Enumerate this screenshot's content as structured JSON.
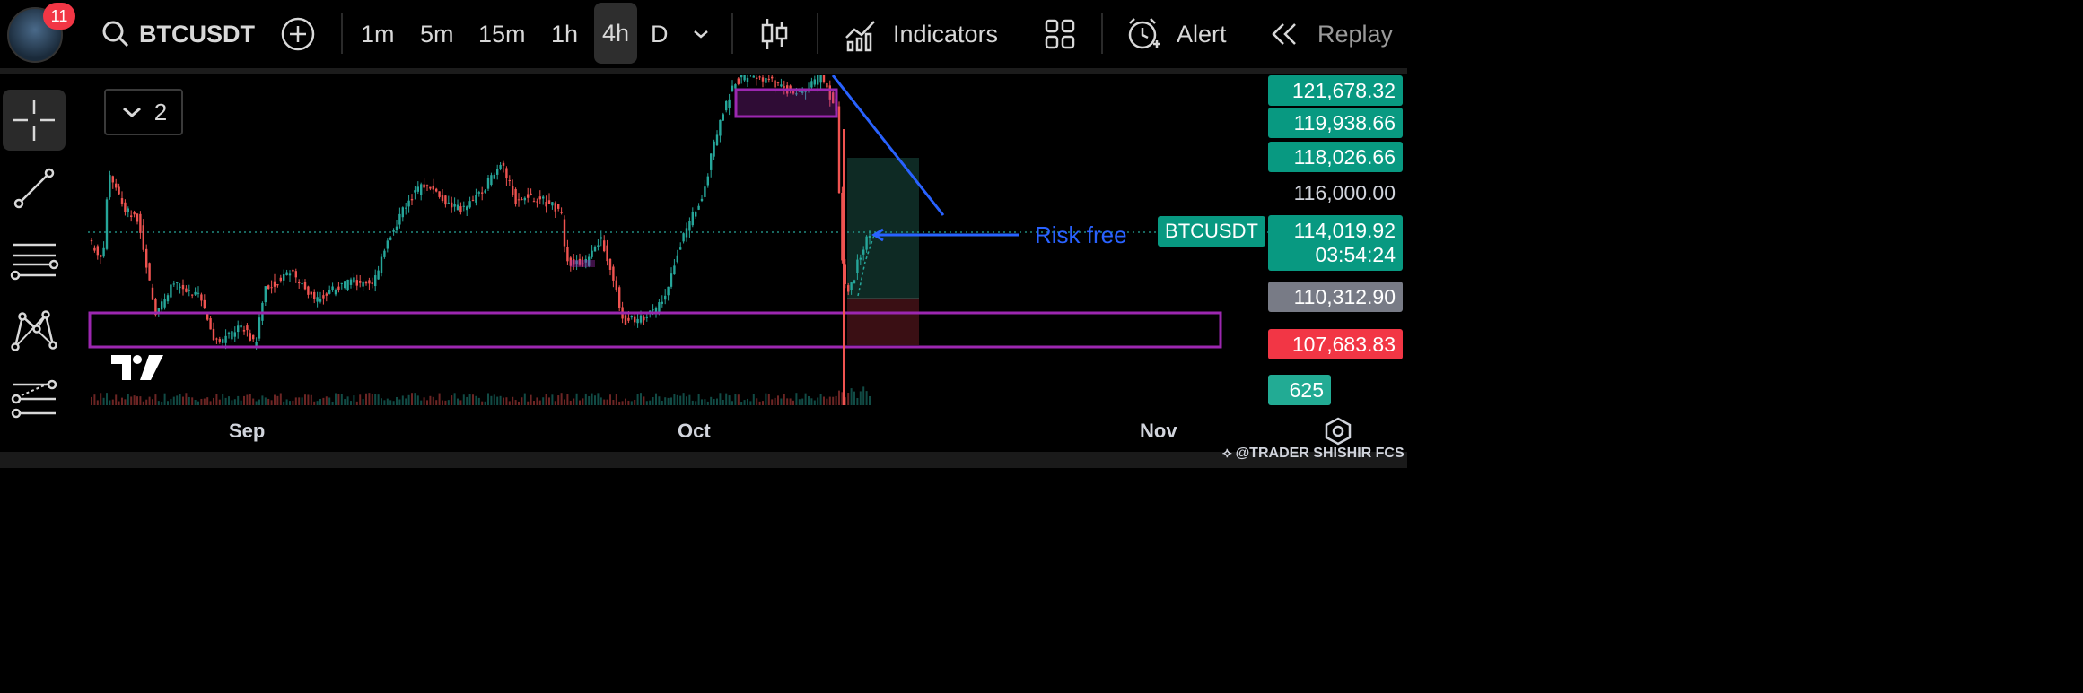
{
  "toolbar": {
    "notifications": "11",
    "symbol": "BTCUSDT",
    "timeframes": [
      "1m",
      "5m",
      "15m",
      "1h",
      "4h",
      "D"
    ],
    "active_timeframe": "4h",
    "indicators_label": "Indicators",
    "alert_label": "Alert",
    "replay_label": "Replay"
  },
  "legend": {
    "count": "2"
  },
  "chart": {
    "x_labels": [
      "Sep",
      "Oct",
      "Nov"
    ],
    "annotation": "Risk free",
    "symbol_tag": "BTCUSDT",
    "price_labels": {
      "p1": "121,678.32",
      "p2": "119,938.66",
      "p3": "118,026.66",
      "scale": "116,000.00",
      "current": "114,019.92",
      "countdown": "03:54:24",
      "p5": "110,312.90",
      "p6": "107,683.83",
      "volume": "625"
    }
  },
  "watermark": "@TRADER SHISHIR FCS",
  "colors": {
    "up": "#26a69a",
    "down": "#ef5350",
    "zone": "#9c27b0",
    "trendline": "#2962ff",
    "risk_free_text": "#2962ff"
  }
}
